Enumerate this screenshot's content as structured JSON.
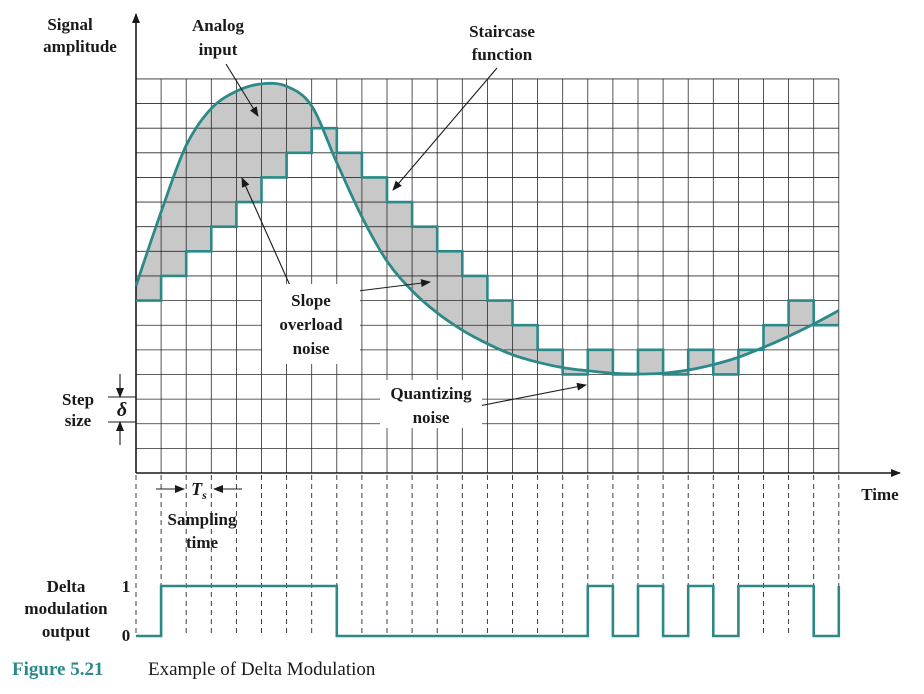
{
  "labels": {
    "signal_amplitude_1": "Signal",
    "signal_amplitude_2": "amplitude",
    "analog_input_1": "Analog",
    "analog_input_2": "input",
    "staircase_1": "Staircase",
    "staircase_2": "function",
    "slope_1": "Slope",
    "slope_2": "overload",
    "slope_3": "noise",
    "quant_1": "Quantizing",
    "quant_2": "noise",
    "step_1": "Step",
    "step_2": "size",
    "delta": "δ",
    "time": "Time",
    "ts_main": "T",
    "ts_sub": "s",
    "sampling_1": "Sampling",
    "sampling_2": "time",
    "dm_1": "Delta",
    "dm_2": "modulation",
    "dm_3": "output",
    "dm_one": "1",
    "dm_zero": "0"
  },
  "caption": {
    "figure": "Figure 5.21",
    "text": "Example of Delta Modulation"
  },
  "colors": {
    "signal": "#2b8a89",
    "noise_fill": "#c8c8c8",
    "grid": "#2a2a2a",
    "caption": "#2b8a89"
  },
  "chart_data": {
    "type": "line",
    "step_levels": [
      7,
      8,
      9,
      10,
      11,
      12,
      13,
      14,
      13,
      12,
      11,
      10,
      9,
      8,
      7,
      6,
      5,
      4,
      5,
      4,
      5,
      4,
      5,
      4,
      5,
      6,
      7,
      6
    ],
    "dm_bits": [
      0,
      1,
      1,
      1,
      1,
      1,
      1,
      1,
      0,
      0,
      0,
      0,
      0,
      0,
      0,
      0,
      0,
      0,
      1,
      0,
      1,
      0,
      1,
      0,
      1,
      1,
      1,
      0,
      1
    ],
    "analog_input": [
      [
        0,
        7.6
      ],
      [
        1,
        10.6
      ],
      [
        2,
        13.3
      ],
      [
        3,
        14.8
      ],
      [
        4,
        15.5
      ],
      [
        5,
        15.8
      ],
      [
        6,
        15.7
      ],
      [
        7,
        14.9
      ],
      [
        8,
        12.6
      ],
      [
        9,
        10.4
      ],
      [
        10,
        8.6
      ],
      [
        11,
        7.4
      ],
      [
        12,
        6.5
      ],
      [
        13,
        5.8
      ],
      [
        14,
        5.25
      ],
      [
        15,
        4.8
      ],
      [
        16,
        4.5
      ],
      [
        17,
        4.28
      ],
      [
        18,
        4.15
      ],
      [
        19,
        4.05
      ],
      [
        20,
        4.02
      ],
      [
        21,
        4.05
      ],
      [
        22,
        4.18
      ],
      [
        23,
        4.4
      ],
      [
        24,
        4.7
      ],
      [
        25,
        5.1
      ],
      [
        26,
        5.55
      ],
      [
        27,
        6.05
      ],
      [
        28,
        6.6
      ]
    ],
    "grid": true
  }
}
